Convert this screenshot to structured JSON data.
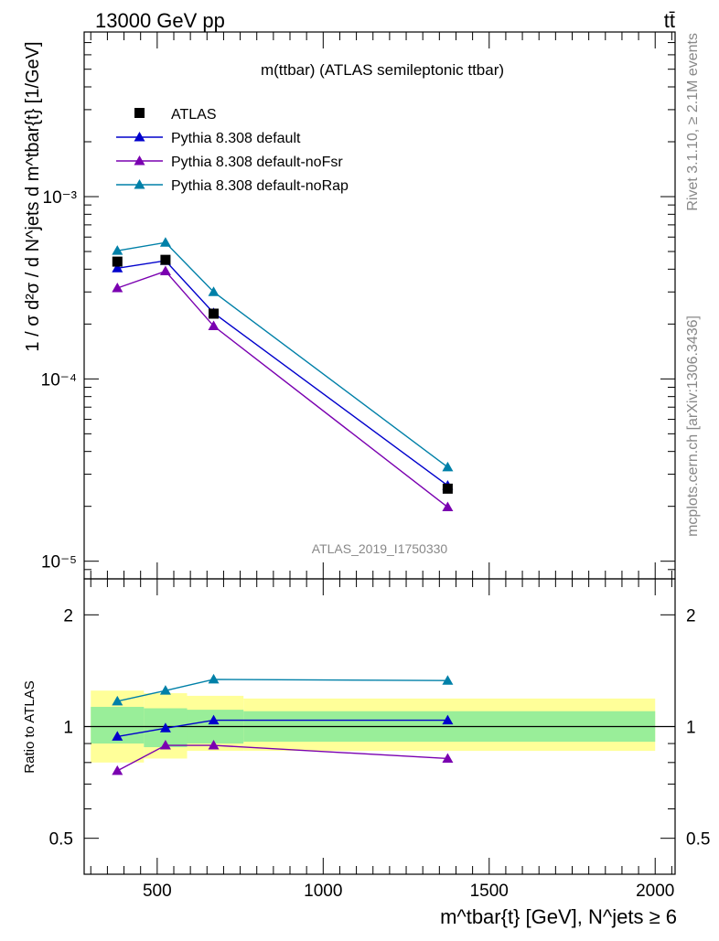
{
  "header": {
    "energy_label": "13000 GeV pp",
    "process_label": "tt̄"
  },
  "side_labels": {
    "rivet": "Rivet 3.1.10, ≥ 2.1M events",
    "mcplots": "mcplots.cern.ch [arXiv:1306.3436]"
  },
  "chart_data": [
    {
      "type": "line",
      "panel": "main",
      "title": "m(ttbar) (ATLAS semileptonic ttbar)",
      "analysis_label": "ATLAS_2019_I1750330",
      "ylabel": "1 / σ d²σ / d N^jets d m^tbar{t} [1/GeV]",
      "y_scale": "log",
      "ylim": [
        8e-06,
        0.008
      ],
      "xlim": [
        280,
        2060
      ],
      "y_tick_labels": [
        "10⁻³",
        "10⁻⁴",
        "10⁻⁵"
      ],
      "legend_position": "top-left",
      "x": [
        380,
        525,
        670,
        1375
      ],
      "series": [
        {
          "name": "ATLAS",
          "marker": "square",
          "color": "#000000",
          "values": [
            0.00044,
            0.00045,
            0.000228,
            2.5e-05
          ]
        },
        {
          "name": "Pythia 8.308 default",
          "marker": "triangle",
          "color": "#0000cc",
          "values": [
            0.000405,
            0.000445,
            0.00023,
            2.6e-05
          ]
        },
        {
          "name": "Pythia 8.308 default-noFsr",
          "marker": "triangle",
          "color": "#7a00b0",
          "values": [
            0.000315,
            0.00039,
            0.000195,
            1.98e-05
          ]
        },
        {
          "name": "Pythia 8.308 default-noRap",
          "marker": "triangle",
          "color": "#0080a8",
          "values": [
            0.000505,
            0.00056,
            0.0003,
            3.28e-05
          ]
        }
      ]
    },
    {
      "type": "line",
      "panel": "ratio",
      "ylabel": "Ratio to ATLAS",
      "xlabel": "m^tbar{t} [GeV], N^jets ≥ 6",
      "y_scale": "log",
      "ylim": [
        0.4,
        2.5
      ],
      "xlim": [
        280,
        2060
      ],
      "y_tick_labels": [
        "2",
        "1",
        "0.5"
      ],
      "x_tick_labels": [
        "500",
        "1000",
        "1500",
        "2000"
      ],
      "x": [
        380,
        525,
        670,
        1375
      ],
      "bands": [
        {
          "name": "stat",
          "color": "#99ee99",
          "edges": [
            300,
            460,
            590,
            760,
            2000
          ],
          "lower": [
            0.9,
            0.88,
            0.9,
            0.91
          ],
          "upper": [
            1.13,
            1.12,
            1.11,
            1.1
          ]
        },
        {
          "name": "total",
          "color": "#ffff99",
          "edges": [
            300,
            460,
            590,
            760,
            2000
          ],
          "lower": [
            0.8,
            0.82,
            0.86,
            0.86
          ],
          "upper": [
            1.25,
            1.23,
            1.21,
            1.19
          ]
        }
      ],
      "series": [
        {
          "name": "Pythia 8.308 default",
          "color": "#0000cc",
          "values": [
            0.94,
            0.99,
            1.04,
            1.04
          ]
        },
        {
          "name": "Pythia 8.308 default-noFsr",
          "color": "#7a00b0",
          "values": [
            0.76,
            0.89,
            0.89,
            0.82
          ]
        },
        {
          "name": "Pythia 8.308 default-noRap",
          "color": "#0080a8",
          "values": [
            1.17,
            1.25,
            1.34,
            1.33
          ]
        }
      ]
    }
  ]
}
